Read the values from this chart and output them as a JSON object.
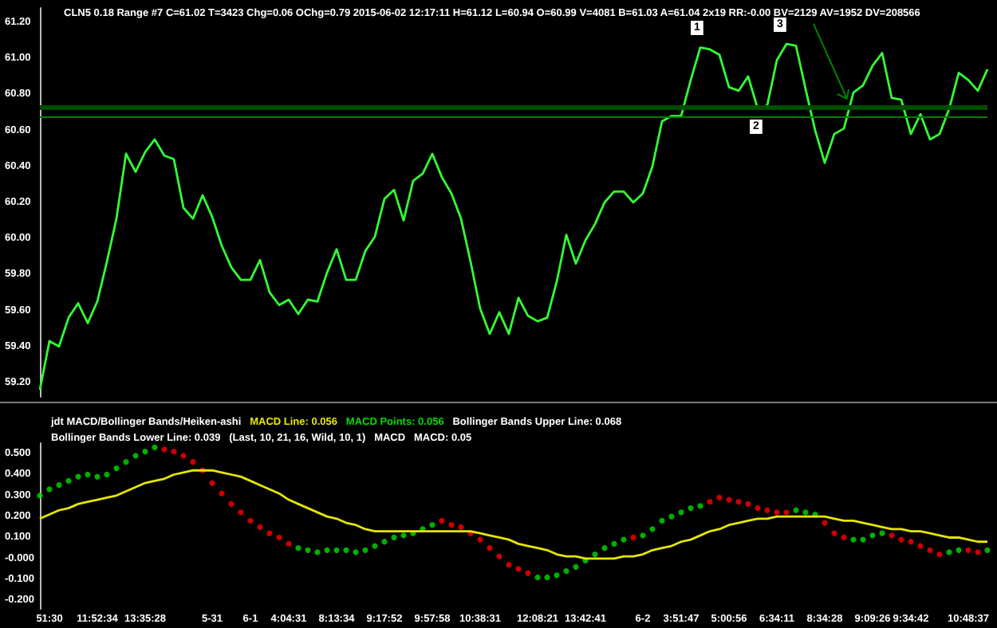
{
  "chart_data": [
    {
      "type": "line",
      "title": "CLN5 0.18 Range #7 C=61.02 T=3423 Chg=0.06 OChg=0.79 2015-06-02 12:17:11 H=61.12 L=60.94 O=60.99 V=4081 B=61.03 A=61.04 2x19 RR:-0.00 BV=2129 AV=1952 DV=208566",
      "annotations": [
        "1",
        "2",
        "3"
      ],
      "categories": [
        null,
        null,
        null,
        null,
        null,
        null,
        null,
        null,
        null,
        null,
        null,
        null,
        null,
        null,
        null,
        null,
        null,
        null,
        null,
        null,
        null,
        null,
        null,
        null,
        null,
        null,
        null,
        null,
        null,
        null,
        null,
        null,
        null,
        null,
        null,
        null,
        null,
        null,
        null,
        null,
        null,
        null,
        null,
        null,
        null,
        null,
        null,
        null,
        null,
        null,
        null,
        null,
        null,
        null,
        null,
        null,
        null,
        null,
        null,
        null,
        null,
        null,
        null,
        null,
        null,
        null,
        null,
        null,
        null,
        null,
        null,
        null,
        null,
        null,
        null,
        null,
        null,
        null,
        null,
        null,
        null,
        null,
        null,
        null,
        null,
        null,
        null,
        null,
        null,
        null,
        null,
        null,
        null,
        null,
        null,
        null,
        null,
        null,
        null,
        null
      ],
      "series": [
        {
          "color": "#33ff33",
          "values": [
            59.16,
            59.43,
            59.4,
            59.56,
            59.64,
            59.53,
            59.65,
            59.87,
            60.11,
            60.47,
            60.37,
            60.48,
            60.55,
            60.46,
            60.44,
            60.17,
            60.11,
            60.24,
            60.12,
            59.96,
            59.84,
            59.77,
            59.77,
            59.88,
            59.7,
            59.63,
            59.66,
            59.58,
            59.66,
            59.65,
            59.81,
            59.94,
            59.77,
            59.77,
            59.93,
            60.01,
            60.22,
            60.27,
            60.1,
            60.32,
            60.36,
            60.47,
            60.34,
            60.25,
            60.11,
            59.87,
            59.61,
            59.47,
            59.59,
            59.47,
            59.67,
            59.57,
            59.54,
            59.56,
            59.76,
            60.02,
            59.86,
            59.99,
            60.08,
            60.2,
            60.26,
            60.26,
            60.2,
            60.25,
            60.4,
            60.65,
            60.68,
            60.68,
            60.88,
            61.06,
            61.05,
            61.02,
            60.84,
            60.82,
            60.9,
            60.72,
            60.74,
            60.99,
            61.08,
            61.07,
            60.83,
            60.6,
            60.42,
            60.58,
            60.61,
            60.81,
            60.85,
            60.96,
            61.03,
            60.78,
            60.77,
            60.58,
            60.69,
            60.55,
            60.58,
            60.72,
            60.92,
            60.88,
            60.82,
            60.94
          ]
        }
      ],
      "ylim": [
        59.12,
        61.28
      ],
      "yticks": [
        {
          "value": 59.2,
          "label": "59.20"
        },
        {
          "value": 59.4,
          "label": "59.40"
        },
        {
          "value": 59.6,
          "label": "59.60"
        },
        {
          "value": 59.8,
          "label": "59.80"
        },
        {
          "value": 60,
          "label": "60.00"
        },
        {
          "value": 60.2,
          "label": "60.20"
        },
        {
          "value": 60.4,
          "label": "60.40"
        },
        {
          "value": 60.6,
          "label": "60.60"
        },
        {
          "value": 60.8,
          "label": "60.80"
        },
        {
          "value": 61,
          "label": "61.00"
        },
        {
          "value": 61.2,
          "label": "61.20"
        }
      ],
      "ref_lines": [
        {
          "axis": "y",
          "value": 60.73,
          "color": "#004d00"
        },
        {
          "axis": "y",
          "value": 60.68,
          "color": "#008000"
        }
      ]
    },
    {
      "type": "line",
      "title": "jdt MACD/Bollinger Bands/Heiken-ashi",
      "annotations": [
        "MACD Line: 0.056",
        "MACD Points: 0.056",
        "Bollinger Bands Upper Line: 0.068",
        "Bollinger Bands Lower Line: 0.039",
        "(Last, 10, 21, 16, Wild, 10, 1)",
        "MACD",
        "MACD: 0.05"
      ],
      "categories": [
        null,
        "51:30",
        null,
        null,
        null,
        null,
        "11:52:34",
        null,
        null,
        null,
        null,
        "13:35:28",
        null,
        null,
        null,
        null,
        null,
        null,
        "5-31",
        null,
        null,
        null,
        "6-1",
        null,
        null,
        null,
        "4:04:31",
        null,
        null,
        null,
        null,
        "8:13:34",
        null,
        null,
        null,
        null,
        "9:17:52",
        null,
        null,
        null,
        null,
        "9:57:58",
        null,
        null,
        null,
        null,
        "10:38:31",
        null,
        null,
        null,
        null,
        null,
        "12:08:21",
        null,
        null,
        null,
        null,
        "13:42:41",
        null,
        null,
        null,
        null,
        null,
        "6-2",
        null,
        null,
        null,
        "3:51:47",
        null,
        null,
        null,
        null,
        "5:00:56",
        null,
        null,
        null,
        null,
        "6:34:11",
        null,
        null,
        null,
        null,
        "8:34:28",
        null,
        null,
        null,
        null,
        "9:09:26",
        null,
        null,
        null,
        "9:34:42",
        null,
        null,
        null,
        null,
        null,
        "10:48:37",
        null,
        null
      ],
      "series": [
        {
          "color": "#e6e600",
          "values": [
            0.19,
            0.21,
            0.23,
            0.24,
            0.26,
            0.27,
            0.28,
            0.29,
            0.3,
            0.32,
            0.34,
            0.36,
            0.37,
            0.38,
            0.4,
            0.41,
            0.42,
            0.42,
            0.42,
            0.41,
            0.4,
            0.39,
            0.37,
            0.35,
            0.33,
            0.31,
            0.28,
            0.26,
            0.24,
            0.22,
            0.2,
            0.19,
            0.17,
            0.16,
            0.14,
            0.13,
            0.13,
            0.13,
            0.13,
            0.13,
            0.13,
            0.13,
            0.13,
            0.13,
            0.13,
            0.13,
            0.12,
            0.11,
            0.1,
            0.09,
            0.07,
            0.06,
            0.05,
            0.04,
            0.02,
            0.01,
            0.01,
            0.0,
            0.0,
            0.0,
            0.0,
            0.01,
            0.01,
            0.02,
            0.04,
            0.05,
            0.06,
            0.08,
            0.09,
            0.11,
            0.13,
            0.14,
            0.16,
            0.17,
            0.18,
            0.19,
            0.19,
            0.2,
            0.2,
            0.2,
            0.2,
            0.2,
            0.2,
            0.19,
            0.18,
            0.18,
            0.17,
            0.16,
            0.15,
            0.14,
            0.14,
            0.13,
            0.13,
            0.12,
            0.11,
            0.1,
            0.1,
            0.09,
            0.08,
            0.08
          ]
        },
        {
          "type": "scatter",
          "color": "#00dd00",
          "values": [
            0.3,
            0.33,
            0.35,
            0.37,
            0.39,
            0.4,
            0.39,
            0.4,
            0.43,
            0.46,
            0.49,
            0.51,
            0.53,
            0.52,
            0.51,
            0.49,
            0.46,
            0.42,
            0.36,
            0.31,
            0.26,
            0.22,
            0.18,
            0.15,
            0.12,
            0.1,
            0.07,
            0.05,
            0.04,
            0.03,
            0.04,
            0.04,
            0.04,
            0.03,
            0.04,
            0.06,
            0.08,
            0.1,
            0.11,
            0.12,
            0.14,
            0.16,
            0.18,
            0.16,
            0.15,
            0.12,
            0.09,
            0.05,
            0.01,
            -0.03,
            -0.05,
            -0.07,
            -0.09,
            -0.09,
            -0.08,
            -0.06,
            -0.04,
            -0.01,
            0.02,
            0.05,
            0.07,
            0.09,
            0.1,
            0.11,
            0.14,
            0.18,
            0.2,
            0.22,
            0.24,
            0.25,
            0.27,
            0.29,
            0.28,
            0.27,
            0.26,
            0.24,
            0.23,
            0.22,
            0.22,
            0.23,
            0.22,
            0.21,
            0.17,
            0.12,
            0.1,
            0.09,
            0.09,
            0.11,
            0.12,
            0.11,
            0.09,
            0.08,
            0.06,
            0.04,
            0.02,
            0.03,
            0.04,
            0.04,
            0.03,
            0.04
          ],
          "colors": [
            "#00dd00",
            "#00dd00",
            "#00dd00",
            "#00dd00",
            "#00dd00",
            "#00dd00",
            "#00dd00",
            "#00dd00",
            "#00dd00",
            "#00dd00",
            "#00dd00",
            "#00dd00",
            "#00dd00",
            "#ff0000",
            "#ff0000",
            "#ff0000",
            "#ff0000",
            "#ff0000",
            "#ff0000",
            "#ff0000",
            "#ff0000",
            "#ff0000",
            "#ff0000",
            "#ff0000",
            "#ff0000",
            "#ff0000",
            "#ff0000",
            "#00dd00",
            "#00dd00",
            "#00dd00",
            "#00dd00",
            "#00dd00",
            "#00dd00",
            "#00dd00",
            "#00dd00",
            "#00dd00",
            "#00dd00",
            "#00dd00",
            "#00dd00",
            "#00dd00",
            "#00dd00",
            "#00dd00",
            "#ff0000",
            "#ff0000",
            "#ff0000",
            "#ff0000",
            "#ff0000",
            "#ff0000",
            "#ff0000",
            "#ff0000",
            "#ff0000",
            "#ff0000",
            "#00dd00",
            "#00dd00",
            "#00dd00",
            "#00dd00",
            "#00dd00",
            "#00dd00",
            "#00dd00",
            "#00dd00",
            "#00dd00",
            "#00dd00",
            "#ff0000",
            "#00dd00",
            "#00dd00",
            "#00dd00",
            "#00dd00",
            "#00dd00",
            "#00dd00",
            "#00dd00",
            "#ff0000",
            "#ff0000",
            "#ff0000",
            "#ff0000",
            "#ff0000",
            "#ff0000",
            "#ff0000",
            "#ff0000",
            "#ff0000",
            "#00dd00",
            "#00dd00",
            "#00dd00",
            "#ff0000",
            "#ff0000",
            "#ff0000",
            "#00dd00",
            "#00dd00",
            "#00dd00",
            "#00dd00",
            "#ff0000",
            "#ff0000",
            "#ff0000",
            "#ff0000",
            "#ff0000",
            "#ff0000",
            "#00dd00",
            "#00dd00",
            "#ff0000",
            "#ff0000",
            "#00dd00"
          ]
        }
      ],
      "ylim": [
        -0.24,
        0.55
      ],
      "yticks": [
        {
          "value": -0.2,
          "label": "-0.200"
        },
        {
          "value": -0.1,
          "label": "-0.100"
        },
        {
          "value": 0,
          "label": "-0.000"
        },
        {
          "value": 0.1,
          "label": "0.100"
        },
        {
          "value": 0.2,
          "label": "0.200"
        },
        {
          "value": 0.3,
          "label": "0.300"
        },
        {
          "value": 0.4,
          "label": "0.400"
        },
        {
          "value": 0.5,
          "label": "0.500"
        }
      ]
    }
  ]
}
